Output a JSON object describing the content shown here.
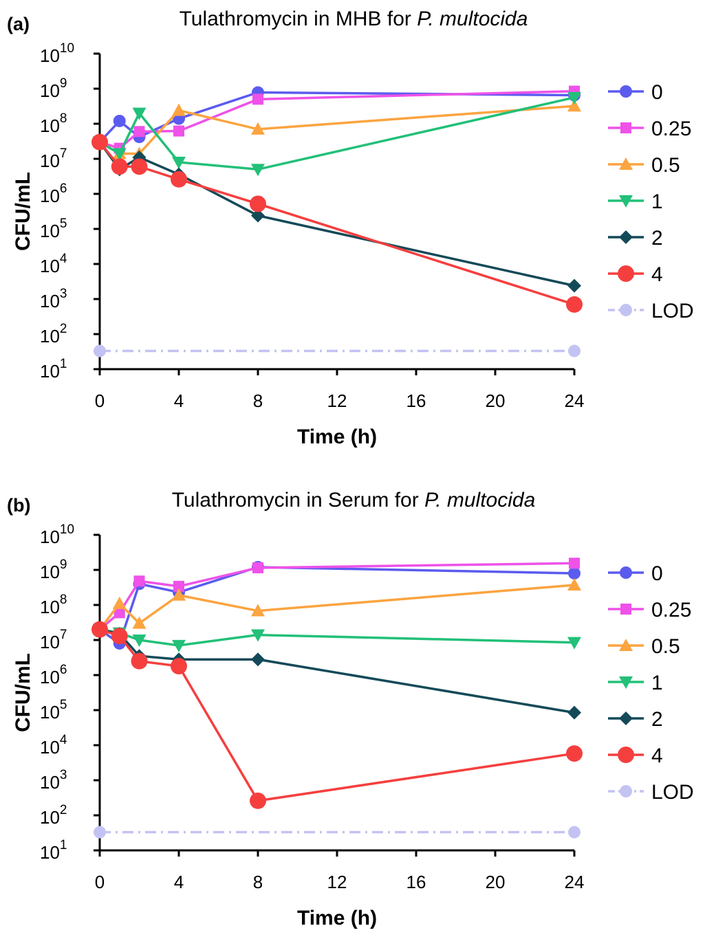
{
  "chart_data": [
    {
      "type": "line",
      "panel_label": "(a)",
      "title": "Tulathromycin in MHB for",
      "title_italic": "P. multocida",
      "xlabel": "Time (h)",
      "ylabel": "CFU/mL",
      "x_ticks": [
        0,
        4,
        8,
        12,
        16,
        20,
        24
      ],
      "x_tick_labels": [
        "0",
        "4",
        "8",
        "12",
        "16",
        "20",
        "24"
      ],
      "xlim": [
        0,
        24
      ],
      "y_scale": "log",
      "ylim": [
        10,
        10000000000
      ],
      "y_ticks": [
        {
          "base": "10",
          "exp": "1"
        },
        {
          "base": "10",
          "exp": "2"
        },
        {
          "base": "10",
          "exp": "3"
        },
        {
          "base": "10",
          "exp": "4"
        },
        {
          "base": "10",
          "exp": "5"
        },
        {
          "base": "10",
          "exp": "6"
        },
        {
          "base": "10",
          "exp": "7"
        },
        {
          "base": "10",
          "exp": "8"
        },
        {
          "base": "10",
          "exp": "9"
        },
        {
          "base": "10",
          "exp": "10"
        }
      ],
      "legend_position": "right",
      "series": [
        {
          "name": "0",
          "color": "#5B5BEF",
          "marker": "circle",
          "x": [
            0,
            1,
            2,
            4,
            8,
            24
          ],
          "values": [
            30000000,
            120000000,
            42000000,
            140000000,
            780000000,
            650000000
          ]
        },
        {
          "name": "0.25",
          "color": "#EE52E8",
          "marker": "square",
          "x": [
            0,
            1,
            2,
            4,
            8,
            24
          ],
          "values": [
            30000000,
            20000000,
            60000000,
            62000000,
            500000000,
            850000000
          ]
        },
        {
          "name": "0.5",
          "color": "#FBA440",
          "marker": "triangle-up",
          "x": [
            0,
            1,
            2,
            4,
            8,
            24
          ],
          "values": [
            30000000,
            14000000,
            14000000,
            240000000,
            70000000,
            320000000
          ]
        },
        {
          "name": "1",
          "color": "#22C078",
          "marker": "triangle-down",
          "x": [
            0,
            1,
            2,
            4,
            8,
            24
          ],
          "values": [
            30000000,
            14000000,
            200000000,
            8000000,
            5000000,
            560000000
          ]
        },
        {
          "name": "2",
          "color": "#144A58",
          "marker": "diamond",
          "x": [
            0,
            1,
            2,
            4,
            8,
            24
          ],
          "values": [
            30000000,
            5000000,
            11000000,
            3600000,
            240000,
            2400
          ]
        },
        {
          "name": "4",
          "color": "#F53F3F",
          "marker": "big-circle",
          "x": [
            0,
            1,
            2,
            4,
            8,
            24
          ],
          "values": [
            30000000,
            6000000,
            6000000,
            2600000,
            520000,
            700
          ]
        },
        {
          "name": "LOD",
          "color": "#C3C3F3",
          "marker": "dashdot",
          "x": [
            0,
            24
          ],
          "values": [
            33,
            33
          ]
        }
      ]
    },
    {
      "type": "line",
      "panel_label": "(b)",
      "title": "Tulathromycin in Serum for",
      "title_italic": "P. multocida",
      "xlabel": "Time (h)",
      "ylabel": "CFU/mL",
      "x_ticks": [
        0,
        4,
        8,
        12,
        16,
        20,
        24
      ],
      "x_tick_labels": [
        "0",
        "4",
        "8",
        "12",
        "16",
        "20",
        "24"
      ],
      "xlim": [
        0,
        24
      ],
      "y_scale": "log",
      "ylim": [
        10,
        10000000000
      ],
      "y_ticks": [
        {
          "base": "10",
          "exp": "1"
        },
        {
          "base": "10",
          "exp": "2"
        },
        {
          "base": "10",
          "exp": "3"
        },
        {
          "base": "10",
          "exp": "4"
        },
        {
          "base": "10",
          "exp": "5"
        },
        {
          "base": "10",
          "exp": "6"
        },
        {
          "base": "10",
          "exp": "7"
        },
        {
          "base": "10",
          "exp": "8"
        },
        {
          "base": "10",
          "exp": "9"
        },
        {
          "base": "10",
          "exp": "10"
        }
      ],
      "legend_position": "right",
      "series": [
        {
          "name": "0",
          "color": "#5B5BEF",
          "marker": "circle",
          "x": [
            0,
            1,
            2,
            4,
            8,
            24
          ],
          "values": [
            20000000,
            8000000,
            400000000,
            230000000,
            1200000000,
            800000000
          ]
        },
        {
          "name": "0.25",
          "color": "#EE52E8",
          "marker": "square",
          "x": [
            0,
            1,
            2,
            4,
            8,
            24
          ],
          "values": [
            20000000,
            60000000,
            480000000,
            340000000,
            1150000000,
            1550000000
          ]
        },
        {
          "name": "0.5",
          "color": "#FBA440",
          "marker": "triangle-up",
          "x": [
            0,
            1,
            2,
            4,
            8,
            24
          ],
          "values": [
            20000000,
            110000000,
            30000000,
            190000000,
            68000000,
            370000000
          ]
        },
        {
          "name": "1",
          "color": "#22C078",
          "marker": "triangle-down",
          "x": [
            0,
            1,
            2,
            4,
            8,
            24
          ],
          "values": [
            20000000,
            16000000,
            10000000,
            7000000,
            14000000,
            8500000
          ]
        },
        {
          "name": "2",
          "color": "#144A58",
          "marker": "diamond",
          "x": [
            0,
            1,
            2,
            4,
            8,
            24
          ],
          "values": [
            20000000,
            15000000,
            3500000,
            2800000,
            2800000,
            85000
          ]
        },
        {
          "name": "4",
          "color": "#F53F3F",
          "marker": "big-circle",
          "x": [
            0,
            1,
            2,
            4,
            8,
            24
          ],
          "values": [
            20000000,
            13000000,
            2500000,
            1800000,
            260,
            5800
          ]
        },
        {
          "name": "LOD",
          "color": "#C3C3F3",
          "marker": "dashdot",
          "x": [
            0,
            24
          ],
          "values": [
            33,
            33
          ]
        }
      ]
    }
  ]
}
